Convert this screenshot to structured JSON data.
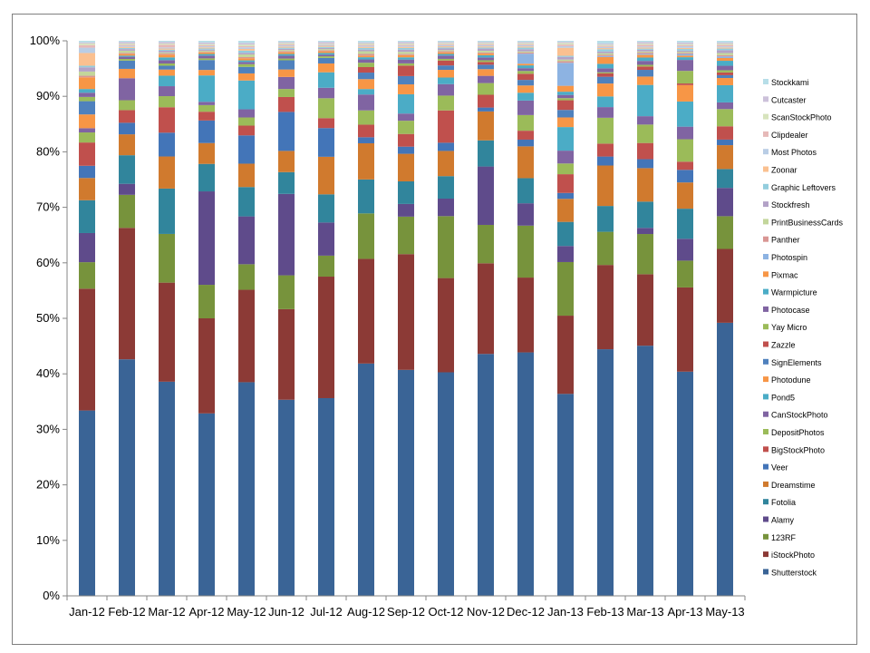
{
  "chart_data": {
    "type": "bar",
    "stacked": true,
    "percent_stacked": true,
    "categories": [
      "Jan-12",
      "Feb-12",
      "Mar-12",
      "Apr-12",
      "May-12",
      "Jun-12",
      "Jul-12",
      "Aug-12",
      "Sep-12",
      "Oct-12",
      "Nov-12",
      "Dec-12",
      "Jan-13",
      "Feb-13",
      "Mar-13",
      "Apr-13",
      "May-13"
    ],
    "ylim": [
      0,
      100
    ],
    "yticks": [
      "0%",
      "10%",
      "20%",
      "30%",
      "40%",
      "50%",
      "60%",
      "70%",
      "80%",
      "90%",
      "100%"
    ],
    "grid": false,
    "legend_position": "right",
    "series": [
      {
        "name": "Shutterstock",
        "color": "#3a6496",
        "values": [
          35.0,
          43.0,
          38.7,
          33.2,
          39.3,
          34.2,
          35.8,
          42.4,
          41.0,
          40.8,
          43.5,
          43.6,
          37.7,
          43.9,
          44.8,
          41.0,
          49.2
        ]
      },
      {
        "name": "iStockPhoto",
        "color": "#8c3a36",
        "values": [
          23.0,
          23.9,
          17.9,
          17.3,
          17.0,
          15.8,
          22.0,
          19.1,
          21.0,
          17.2,
          16.3,
          13.4,
          14.6,
          15.0,
          12.8,
          15.4,
          13.3
        ]
      },
      {
        "name": "123RF",
        "color": "#77933c",
        "values": [
          5.0,
          6.0,
          8.8,
          6.1,
          4.7,
          5.9,
          3.8,
          8.3,
          6.8,
          11.3,
          6.9,
          9.3,
          10.0,
          5.9,
          7.2,
          4.9,
          5.9
        ]
      },
      {
        "name": "Alamy",
        "color": "#5f4b8b",
        "values": [
          5.5,
          2.0,
          0.0,
          17.0,
          8.8,
          14.2,
          6.0,
          0.0,
          2.3,
          3.2,
          10.5,
          4.0,
          3.0,
          0.0,
          1.1,
          4.0,
          5.1
        ]
      },
      {
        "name": "Fotolia",
        "color": "#31859c",
        "values": [
          6.2,
          5.2,
          8.2,
          5.0,
          5.4,
          3.8,
          5.1,
          6.2,
          4.1,
          4.1,
          4.7,
          4.5,
          4.5,
          4.6,
          4.7,
          5.5,
          3.4
        ]
      },
      {
        "name": "Dreamstime",
        "color": "#d07a2e",
        "values": [
          4.2,
          3.8,
          5.8,
          3.8,
          4.3,
          3.7,
          6.8,
          6.6,
          5.0,
          4.6,
          5.2,
          5.7,
          4.3,
          7.2,
          6.0,
          4.8,
          4.3
        ]
      },
      {
        "name": "Veer",
        "color": "#4375b8",
        "values": [
          2.3,
          2.1,
          4.3,
          4.1,
          5.2,
          6.8,
          5.2,
          1.1,
          1.3,
          1.5,
          0.7,
          1.2,
          1.1,
          1.6,
          1.6,
          2.3,
          1.0
        ]
      },
      {
        "name": "BigStockPhoto",
        "color": "#c0504d",
        "values": [
          4.4,
          2.3,
          4.6,
          1.6,
          1.8,
          2.6,
          1.8,
          2.3,
          2.3,
          5.9,
          2.3,
          1.6,
          3.5,
          2.3,
          2.9,
          1.5,
          2.4
        ]
      },
      {
        "name": "DepositPhotos",
        "color": "#9bbb59",
        "values": [
          1.9,
          1.8,
          2.0,
          1.2,
          1.5,
          1.4,
          3.6,
          2.6,
          2.4,
          2.7,
          2.1,
          2.8,
          2.0,
          4.6,
          3.3,
          4.1,
          3.1
        ]
      },
      {
        "name": "CanStockPhoto",
        "color": "#8064a2",
        "values": [
          0.8,
          4.0,
          1.8,
          0.6,
          1.5,
          2.1,
          1.9,
          2.9,
          1.3,
          2.1,
          1.3,
          2.6,
          2.4,
          1.9,
          1.5,
          2.3,
          1.2
        ]
      },
      {
        "name": "Pond5",
        "color": "#4bacc6",
        "values": [
          0.0,
          0.0,
          1.9,
          4.8,
          5.3,
          0.0,
          2.8,
          1.0,
          3.5,
          1.2,
          0.0,
          1.4,
          4.4,
          1.9,
          5.6,
          4.6,
          3.1
        ]
      },
      {
        "name": "Photodune",
        "color": "#f79646",
        "values": [
          2.6,
          1.7,
          1.1,
          1.0,
          1.3,
          1.3,
          1.6,
          1.8,
          1.8,
          1.4,
          1.2,
          1.3,
          1.8,
          2.3,
          1.5,
          3.0,
          1.3
        ]
      },
      {
        "name": "SignElements",
        "color": "#4f81bd",
        "values": [
          2.5,
          1.5,
          0.7,
          1.8,
          1.2,
          1.6,
          1.0,
          1.2,
          1.5,
          0.8,
          0.8,
          1.0,
          1.4,
          1.2,
          1.2,
          0.0,
          0.5
        ]
      },
      {
        "name": "Zazzle",
        "color": "#c0504d",
        "values": [
          0.0,
          0.0,
          0.0,
          0.0,
          0.0,
          0.0,
          0.0,
          1.0,
          1.9,
          0.9,
          0.5,
          1.1,
          1.8,
          0.6,
          0.6,
          0.3,
          0.5
        ]
      },
      {
        "name": "Yay Micro",
        "color": "#9bbb59",
        "values": [
          0.8,
          0.3,
          0.4,
          0.3,
          0.5,
          0.3,
          0.3,
          0.8,
          0.4,
          0.3,
          0.3,
          0.5,
          0.4,
          0.2,
          0.3,
          2.3,
          0.4
        ]
      },
      {
        "name": "Photocase",
        "color": "#8064a2",
        "values": [
          0.8,
          0.4,
          0.6,
          0.5,
          0.4,
          0.5,
          0.3,
          0.6,
          0.7,
          0.6,
          0.5,
          0.5,
          0.6,
          0.7,
          0.7,
          2.0,
          0.8
        ]
      },
      {
        "name": "Warmpicture",
        "color": "#4bacc6",
        "values": [
          0.7,
          0.2,
          0.5,
          0.3,
          0.3,
          0.3,
          0.3,
          0.4,
          0.4,
          0.3,
          0.4,
          0.5,
          0.6,
          0.8,
          0.6,
          0.5,
          0.9
        ]
      },
      {
        "name": "Pixmac",
        "color": "#f79646",
        "values": [
          2.2,
          0.3,
          0.5,
          0.3,
          0.4,
          0.3,
          0.3,
          0.3,
          0.4,
          0.3,
          0.3,
          0.3,
          1.1,
          1.2,
          0.5,
          0.3,
          0.5
        ]
      },
      {
        "name": "Photospin",
        "color": "#8db3e2",
        "values": [
          0.0,
          0.0,
          0.0,
          0.0,
          0.0,
          0.0,
          0.0,
          0.0,
          0.0,
          0.0,
          0.0,
          1.8,
          4.3,
          0.2,
          0.2,
          0.3,
          0.3
        ]
      },
      {
        "name": "Panther",
        "color": "#d99694",
        "values": [
          0.3,
          0.2,
          0.2,
          0.1,
          0.2,
          0.2,
          0.2,
          0.3,
          0.2,
          0.2,
          0.2,
          0.2,
          0.3,
          0.2,
          0.2,
          0.2,
          0.2
        ]
      },
      {
        "name": "PrintBusinessCards",
        "color": "#c3d69b",
        "values": [
          0.8,
          0.4,
          0.2,
          0.2,
          0.5,
          0.2,
          0.2,
          0.5,
          0.4,
          0.2,
          0.3,
          0.2,
          0.3,
          0.3,
          0.2,
          0.2,
          0.4
        ]
      },
      {
        "name": "Stockfresh",
        "color": "#b3a2c7",
        "values": [
          0.8,
          0.3,
          0.3,
          0.2,
          0.3,
          0.2,
          0.2,
          0.3,
          0.4,
          0.3,
          0.4,
          0.4,
          0.5,
          0.3,
          0.3,
          0.2,
          0.5
        ]
      },
      {
        "name": "Graphic Leftovers",
        "color": "#93cddd",
        "values": [
          0.3,
          0.2,
          0.2,
          0.2,
          0.4,
          0.2,
          0.2,
          0.3,
          0.3,
          0.2,
          0.2,
          0.3,
          0.2,
          0.4,
          0.2,
          0.3,
          0.3
        ]
      },
      {
        "name": "Zoonar",
        "color": "#fac090",
        "values": [
          2.4,
          0.2,
          0.2,
          0.2,
          0.3,
          0.2,
          0.2,
          0.2,
          0.2,
          0.2,
          0.2,
          0.2,
          1.5,
          0.2,
          0.2,
          0.2,
          0.2
        ]
      },
      {
        "name": "Most Photos",
        "color": "#b9cde5",
        "values": [
          1.0,
          0.2,
          0.2,
          0.2,
          0.3,
          0.2,
          0.2,
          0.2,
          0.2,
          0.2,
          0.2,
          0.2,
          0.3,
          0.2,
          0.2,
          0.3,
          0.2
        ]
      },
      {
        "name": "Clipdealer",
        "color": "#e6b9b8",
        "values": [
          0.5,
          0.2,
          0.5,
          0.2,
          0.2,
          0.2,
          0.1,
          0.2,
          0.2,
          0.2,
          0.2,
          0.2,
          0.3,
          0.2,
          0.3,
          0.2,
          0.3
        ]
      },
      {
        "name": "ScanStockPhoto",
        "color": "#d7e4bd",
        "values": [
          0.3,
          0.2,
          0.2,
          0.2,
          0.3,
          0.2,
          0.1,
          0.2,
          0.2,
          0.2,
          0.2,
          0.2,
          0.3,
          0.2,
          0.2,
          0.2,
          0.2
        ]
      },
      {
        "name": "Cutcaster",
        "color": "#ccc1da",
        "values": [
          0.2,
          0.3,
          0.3,
          0.3,
          0.3,
          0.2,
          0.3,
          0.2,
          0.3,
          0.2,
          0.2,
          0.2,
          0.2,
          0.2,
          0.3,
          0.3,
          0.2
        ]
      },
      {
        "name": "Stockkami",
        "color": "#b7dee8",
        "values": [
          0.3,
          0.2,
          0.2,
          0.3,
          0.4,
          0.2,
          0.2,
          0.3,
          0.2,
          0.2,
          0.2,
          0.2,
          0.2,
          0.5,
          0.2,
          0.3,
          0.3
        ]
      }
    ]
  }
}
